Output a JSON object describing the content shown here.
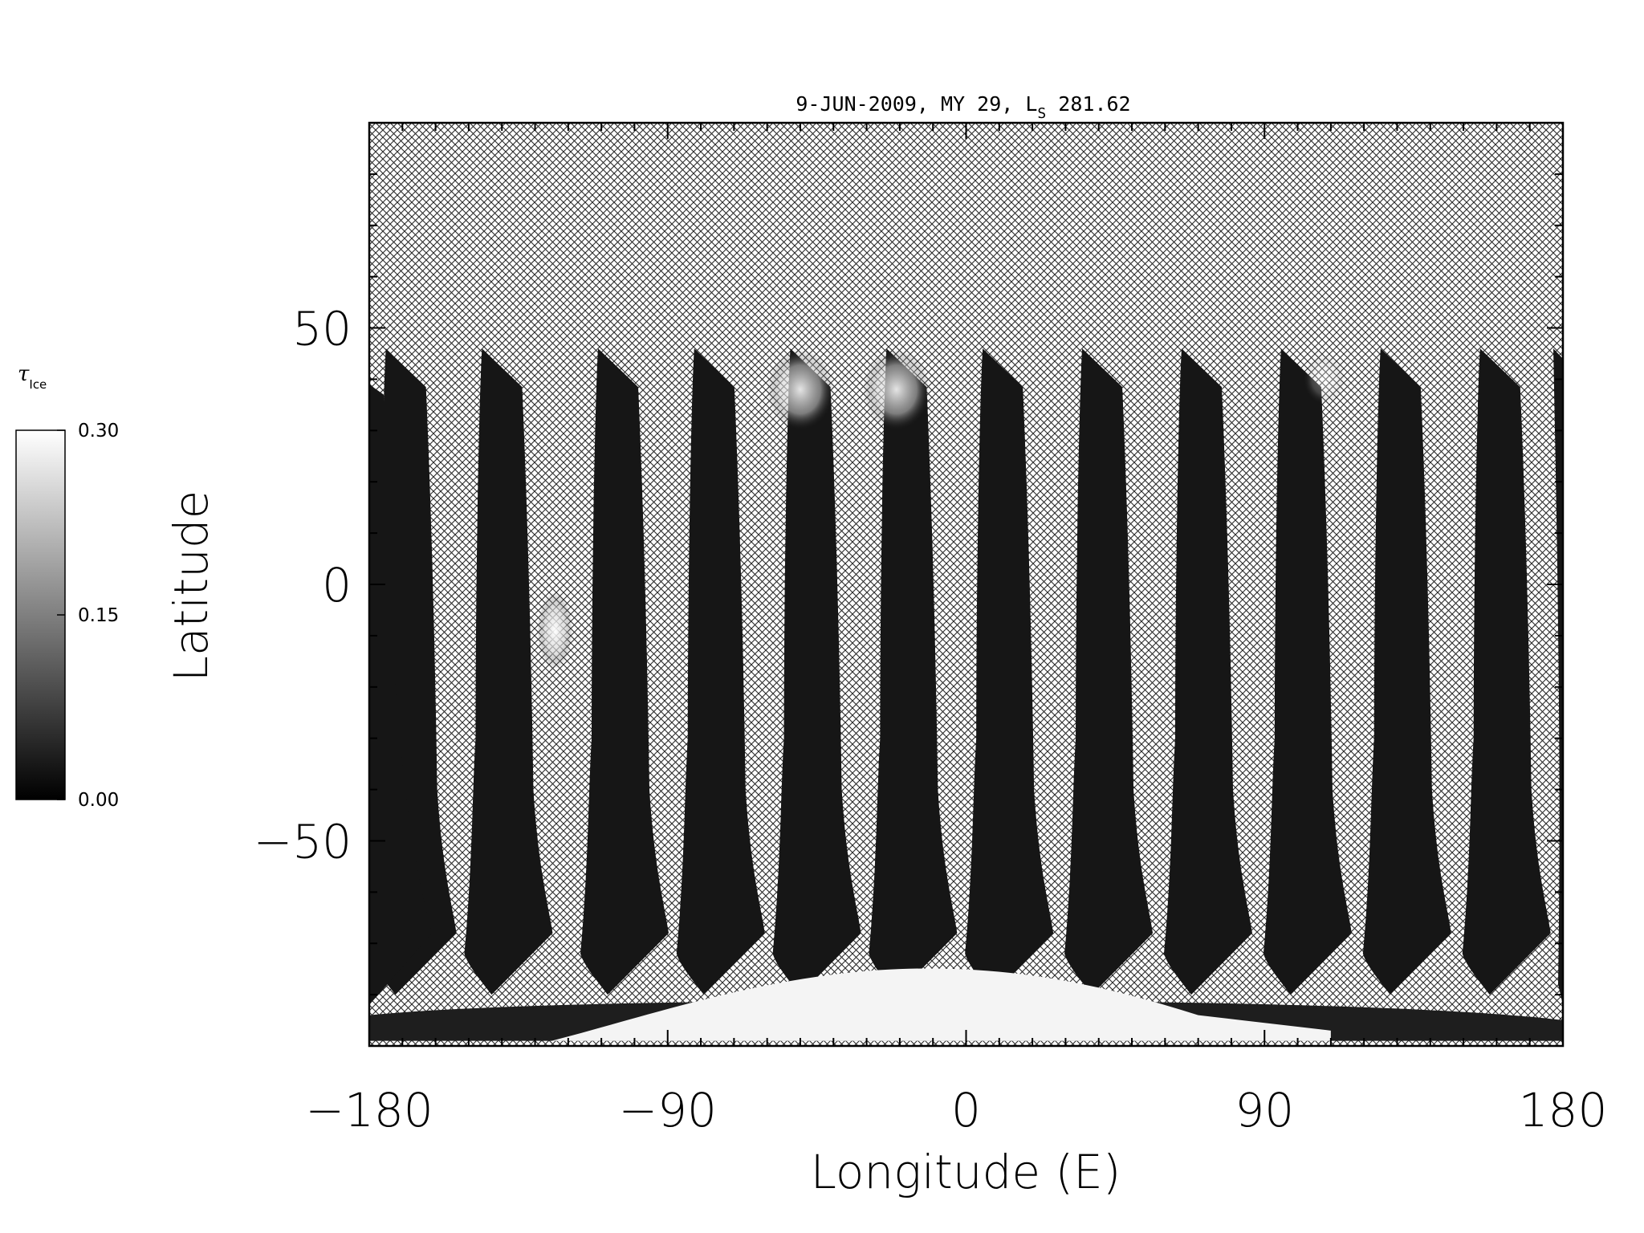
{
  "title": {
    "main": "9-JUN-2009, MY 29,  L",
    "subscript": "S",
    "suffix": " 281.62"
  },
  "axes": {
    "xlabel": "Longitude (E)",
    "ylabel": "Latitude",
    "xlim": [
      -180,
      180
    ],
    "ylim": [
      -90,
      90
    ],
    "xticks": [
      {
        "value": -180,
        "label": "−180"
      },
      {
        "value": -90,
        "label": "−90"
      },
      {
        "value": 0,
        "label": "0"
      },
      {
        "value": 90,
        "label": "90"
      },
      {
        "value": 180,
        "label": "180"
      }
    ],
    "yticks": [
      {
        "value": 50,
        "label": "50"
      },
      {
        "value": 0,
        "label": "0"
      },
      {
        "value": -50,
        "label": "−50"
      }
    ]
  },
  "colorbar": {
    "symbol": "τ",
    "subscript": "Ice",
    "min": 0.0,
    "max": 0.3,
    "labels": [
      {
        "value": 0.3,
        "label": "0.30"
      },
      {
        "value": 0.15,
        "label": "0.15"
      },
      {
        "value": 0.0,
        "label": "0.00"
      }
    ],
    "colormap": "grayscale"
  },
  "map_data": {
    "type": "ground-track map",
    "quantity": "water ice optical depth",
    "no_data_pattern": "cross-hatch",
    "swath_top_longitudes": [
      -175,
      -146,
      -111,
      -82,
      -53,
      -24,
      5,
      35,
      65,
      95,
      125,
      155
    ],
    "swath_top_latitude": 46,
    "bright_features": [
      {
        "name": "northern-cloud-1",
        "lon": -50,
        "lat": 38,
        "tau": 0.28
      },
      {
        "name": "northern-cloud-2",
        "lon": -21,
        "lat": 38,
        "tau": 0.28
      },
      {
        "name": "northern-cloud-3",
        "lon": 108,
        "lat": 40,
        "tau": 0.12
      },
      {
        "name": "equatorial-cloud",
        "lon": -124,
        "lat": -9,
        "tau": 0.27
      },
      {
        "name": "south-polar-cap",
        "lon": 0,
        "lat": -85,
        "tau": 0.3
      }
    ]
  }
}
